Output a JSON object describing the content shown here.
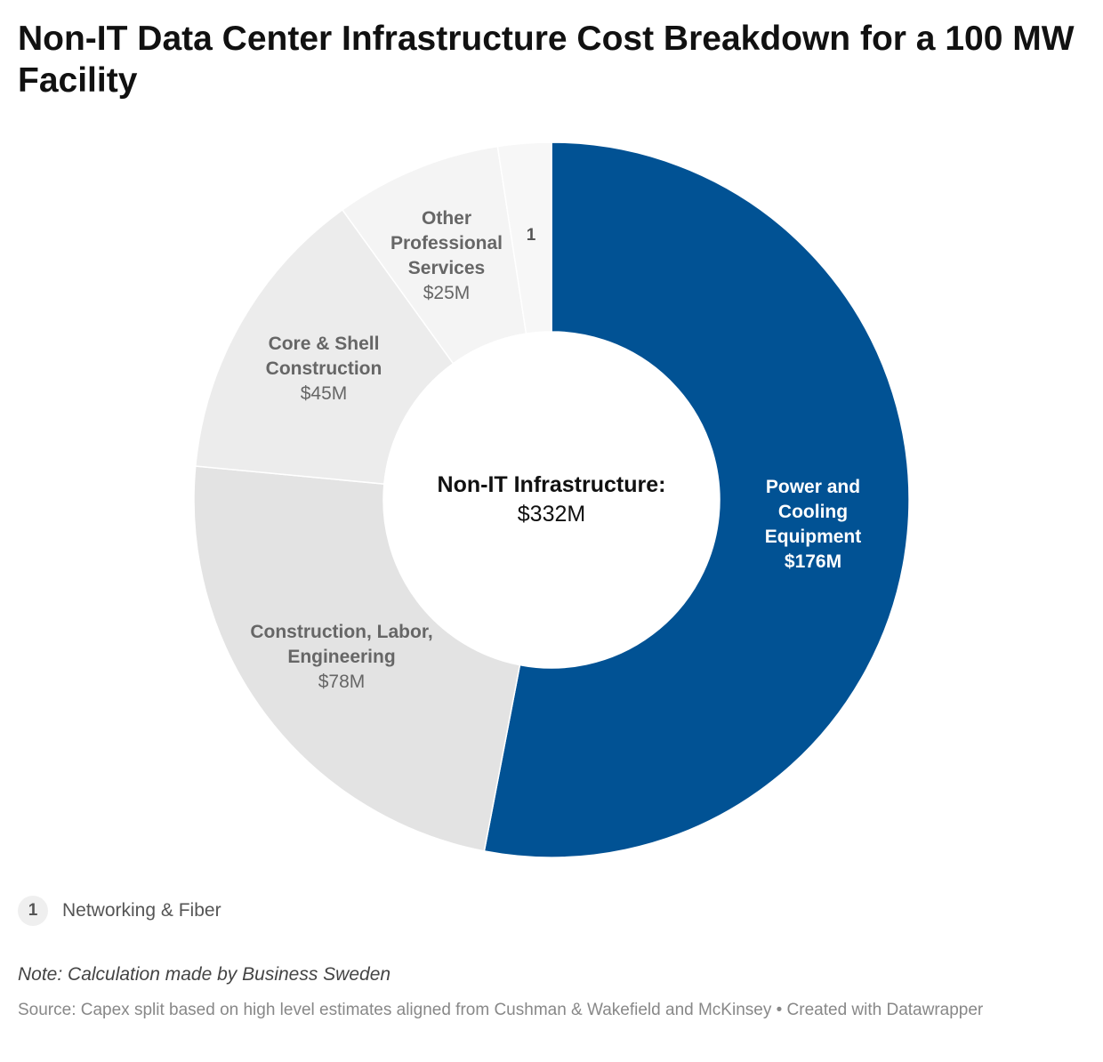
{
  "chart_data": {
    "type": "pie",
    "title": "Non-IT Data Center Infrastructure Cost Breakdown for a 100 MW Facility",
    "center_title": "Non-IT Infrastructure:",
    "center_value": "$332M",
    "categories": [
      "Power and Cooling Equipment",
      "Construction, Labor, Engineering",
      "Core & Shell Construction",
      "Other Professional Services",
      "Networking & Fiber"
    ],
    "values": [
      176,
      78,
      45,
      25,
      8
    ],
    "value_labels": [
      "$176M",
      "$78M",
      "$45M",
      "$25M",
      ""
    ],
    "label_lines": [
      [
        "Power and",
        "Cooling",
        "Equipment"
      ],
      [
        "Construction, Labor,",
        "Engineering"
      ],
      [
        "Core & Shell",
        "Construction"
      ],
      [
        "Other",
        "Professional",
        "Services"
      ],
      []
    ],
    "colors": [
      "#015294",
      "#e3e3e3",
      "#ececec",
      "#f4f4f4",
      "#f7f7f7"
    ],
    "footnote_marker": "1",
    "footnote_label": "Networking & Fiber"
  },
  "note": "Note: Calculation made by Business Sweden",
  "source": "Source: Capex split based on high level estimates aligned from Cushman & Wakefield and McKinsey • Created with Datawrapper"
}
